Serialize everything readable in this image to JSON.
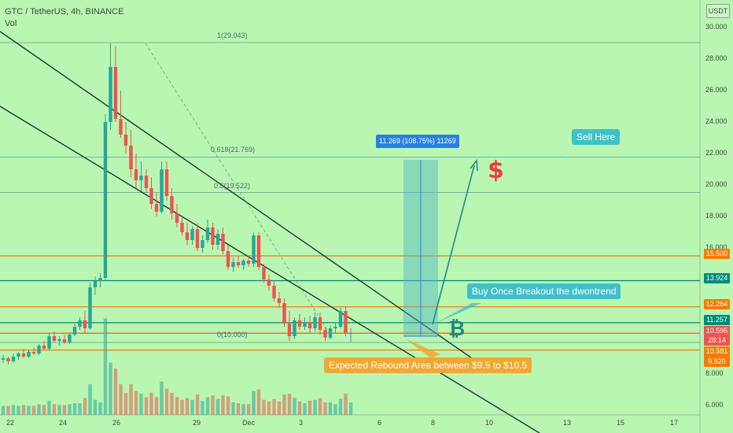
{
  "header": {
    "symbol_line": "GTC / TetherUS, 4h, BINANCE",
    "volume_label": "Vol"
  },
  "axis": {
    "currency": "USDT",
    "y_ticks": [
      "30.000",
      "28.000",
      "26.000",
      "24.000",
      "22.000",
      "20.000",
      "18.000",
      "16.000",
      "8.000",
      "6.000"
    ],
    "x_ticks": [
      "22",
      "24",
      "26",
      "29",
      "Dec",
      "3",
      "6",
      "8",
      "10",
      "13",
      "15",
      "17"
    ]
  },
  "price_tags": [
    {
      "label": "15.500",
      "color": "#f57c00"
    },
    {
      "label": "13.924",
      "color": "#00897b"
    },
    {
      "label": "12.264",
      "color": "#f57c00"
    },
    {
      "label": "11.257",
      "color": "#00897b"
    },
    {
      "label": "10.595",
      "color": "#ef5350"
    },
    {
      "label": "28:14",
      "color": "#ef5350"
    },
    {
      "label": "10.581",
      "color": "#f57c00"
    },
    {
      "label": "9.520",
      "color": "#f57c00"
    }
  ],
  "fib": {
    "level_1": "1(29.043)",
    "level_0618": "0.618(21.769)",
    "level_05": "0.5(19.522)",
    "level_0": "0(10.000)"
  },
  "annotations": {
    "measure": "11.269 (108.75%) 11269",
    "sell_here": "Sell Here",
    "buy_breakout": "Buy Once Breakout the dwontrend",
    "rebound_area": "Expected Rebound Area between $9.5 to $10.5",
    "dollar_sign": "$",
    "bitcoin_sign": "₿"
  },
  "colors": {
    "background": "#b9f6b2",
    "up_candle": "#26a69a",
    "down_candle": "#ef5350",
    "orange_line": "#f57c00",
    "teal_line": "#00897b",
    "trend_line": "#1d3a3a",
    "callout": "#3fc1c9",
    "rebound_box": "#f0a830"
  },
  "chart_data": {
    "type": "candlestick",
    "title": "GTC / TetherUS, 4h, BINANCE",
    "ylim": [
      5.5,
      30.5
    ],
    "horizontal_levels": [
      15.5,
      13.924,
      12.264,
      11.257,
      10.595,
      10.581,
      9.52
    ],
    "candles": [
      {
        "o": 8.9,
        "h": 9.2,
        "l": 8.7,
        "c": 9.0
      },
      {
        "o": 9.0,
        "h": 9.1,
        "l": 8.6,
        "c": 8.8
      },
      {
        "o": 8.8,
        "h": 9.3,
        "l": 8.7,
        "c": 9.1
      },
      {
        "o": 9.1,
        "h": 9.4,
        "l": 8.9,
        "c": 9.3
      },
      {
        "o": 9.3,
        "h": 9.6,
        "l": 9.0,
        "c": 9.1
      },
      {
        "o": 9.1,
        "h": 9.5,
        "l": 9.0,
        "c": 9.4
      },
      {
        "o": 9.4,
        "h": 9.7,
        "l": 9.2,
        "c": 9.3
      },
      {
        "o": 9.3,
        "h": 9.9,
        "l": 9.2,
        "c": 9.8
      },
      {
        "o": 9.8,
        "h": 10.1,
        "l": 9.5,
        "c": 9.6
      },
      {
        "o": 9.6,
        "h": 10.6,
        "l": 9.5,
        "c": 10.4
      },
      {
        "o": 10.4,
        "h": 10.7,
        "l": 10.0,
        "c": 10.1
      },
      {
        "o": 10.1,
        "h": 10.4,
        "l": 9.8,
        "c": 10.2
      },
      {
        "o": 10.2,
        "h": 10.5,
        "l": 9.9,
        "c": 10.0
      },
      {
        "o": 10.0,
        "h": 10.6,
        "l": 9.9,
        "c": 10.5
      },
      {
        "o": 10.5,
        "h": 11.2,
        "l": 10.4,
        "c": 11.0
      },
      {
        "o": 11.0,
        "h": 11.6,
        "l": 10.8,
        "c": 11.4
      },
      {
        "o": 11.4,
        "h": 12.0,
        "l": 10.6,
        "c": 10.9
      },
      {
        "o": 10.9,
        "h": 13.8,
        "l": 10.8,
        "c": 13.5
      },
      {
        "o": 13.5,
        "h": 14.2,
        "l": 13.0,
        "c": 13.9
      },
      {
        "o": 13.9,
        "h": 14.4,
        "l": 13.5,
        "c": 14.1
      },
      {
        "o": 14.1,
        "h": 24.5,
        "l": 13.9,
        "c": 24.0
      },
      {
        "o": 24.0,
        "h": 29.0,
        "l": 23.5,
        "c": 27.5
      },
      {
        "o": 27.5,
        "h": 28.8,
        "l": 24.0,
        "c": 24.2
      },
      {
        "o": 24.2,
        "h": 26.0,
        "l": 23.0,
        "c": 23.2
      },
      {
        "o": 23.2,
        "h": 24.0,
        "l": 22.0,
        "c": 22.5
      },
      {
        "o": 22.5,
        "h": 23.5,
        "l": 20.5,
        "c": 21.0
      },
      {
        "o": 21.0,
        "h": 22.0,
        "l": 19.8,
        "c": 20.3
      },
      {
        "o": 20.3,
        "h": 21.5,
        "l": 19.6,
        "c": 20.6
      },
      {
        "o": 20.6,
        "h": 21.0,
        "l": 19.5,
        "c": 19.8
      },
      {
        "o": 19.8,
        "h": 20.5,
        "l": 18.5,
        "c": 18.8
      },
      {
        "o": 18.8,
        "h": 19.5,
        "l": 18.0,
        "c": 18.3
      },
      {
        "o": 18.3,
        "h": 21.5,
        "l": 18.2,
        "c": 21.0
      },
      {
        "o": 21.0,
        "h": 21.5,
        "l": 19.0,
        "c": 19.3
      },
      {
        "o": 19.3,
        "h": 19.8,
        "l": 17.8,
        "c": 18.2
      },
      {
        "o": 18.2,
        "h": 18.8,
        "l": 17.3,
        "c": 17.6
      },
      {
        "o": 17.6,
        "h": 18.0,
        "l": 16.8,
        "c": 17.0
      },
      {
        "o": 17.0,
        "h": 17.6,
        "l": 16.2,
        "c": 16.5
      },
      {
        "o": 16.5,
        "h": 17.4,
        "l": 16.2,
        "c": 17.2
      },
      {
        "o": 17.2,
        "h": 17.6,
        "l": 15.8,
        "c": 16.0
      },
      {
        "o": 16.0,
        "h": 16.8,
        "l": 15.7,
        "c": 16.5
      },
      {
        "o": 16.5,
        "h": 17.8,
        "l": 16.3,
        "c": 17.3
      },
      {
        "o": 17.3,
        "h": 17.6,
        "l": 15.9,
        "c": 16.2
      },
      {
        "o": 16.2,
        "h": 17.2,
        "l": 15.9,
        "c": 16.9
      },
      {
        "o": 16.9,
        "h": 17.3,
        "l": 15.6,
        "c": 15.8
      },
      {
        "o": 15.8,
        "h": 16.2,
        "l": 14.6,
        "c": 14.8
      },
      {
        "o": 14.8,
        "h": 15.4,
        "l": 14.5,
        "c": 15.1
      },
      {
        "o": 15.1,
        "h": 15.5,
        "l": 14.7,
        "c": 14.9
      },
      {
        "o": 14.9,
        "h": 15.3,
        "l": 14.6,
        "c": 15.2
      },
      {
        "o": 15.2,
        "h": 15.5,
        "l": 14.8,
        "c": 15.0
      },
      {
        "o": 15.0,
        "h": 17.0,
        "l": 14.8,
        "c": 16.8
      },
      {
        "o": 16.8,
        "h": 17.0,
        "l": 14.6,
        "c": 14.8
      },
      {
        "o": 14.8,
        "h": 15.0,
        "l": 13.8,
        "c": 14.0
      },
      {
        "o": 14.0,
        "h": 14.3,
        "l": 13.3,
        "c": 13.6
      },
      {
        "o": 13.6,
        "h": 13.9,
        "l": 12.6,
        "c": 12.8
      },
      {
        "o": 12.8,
        "h": 13.2,
        "l": 12.2,
        "c": 12.5
      },
      {
        "o": 12.5,
        "h": 12.8,
        "l": 11.0,
        "c": 11.2
      },
      {
        "o": 11.2,
        "h": 12.0,
        "l": 10.1,
        "c": 10.4
      },
      {
        "o": 10.4,
        "h": 11.6,
        "l": 10.2,
        "c": 11.4
      },
      {
        "o": 11.4,
        "h": 11.8,
        "l": 10.8,
        "c": 11.0
      },
      {
        "o": 11.0,
        "h": 11.6,
        "l": 10.8,
        "c": 11.3
      },
      {
        "o": 11.3,
        "h": 11.7,
        "l": 10.6,
        "c": 10.9
      },
      {
        "o": 10.9,
        "h": 11.9,
        "l": 10.7,
        "c": 11.6
      },
      {
        "o": 11.6,
        "h": 11.9,
        "l": 10.5,
        "c": 10.8
      },
      {
        "o": 10.8,
        "h": 11.0,
        "l": 10.1,
        "c": 10.3
      },
      {
        "o": 10.3,
        "h": 11.1,
        "l": 10.2,
        "c": 10.9
      },
      {
        "o": 10.9,
        "h": 11.3,
        "l": 10.6,
        "c": 11.0
      },
      {
        "o": 11.0,
        "h": 12.2,
        "l": 10.9,
        "c": 12.0
      },
      {
        "o": 12.0,
        "h": 12.3,
        "l": 10.4,
        "c": 10.6
      },
      {
        "o": 10.6,
        "h": 10.9,
        "l": 10.0,
        "c": 10.6
      }
    ]
  }
}
